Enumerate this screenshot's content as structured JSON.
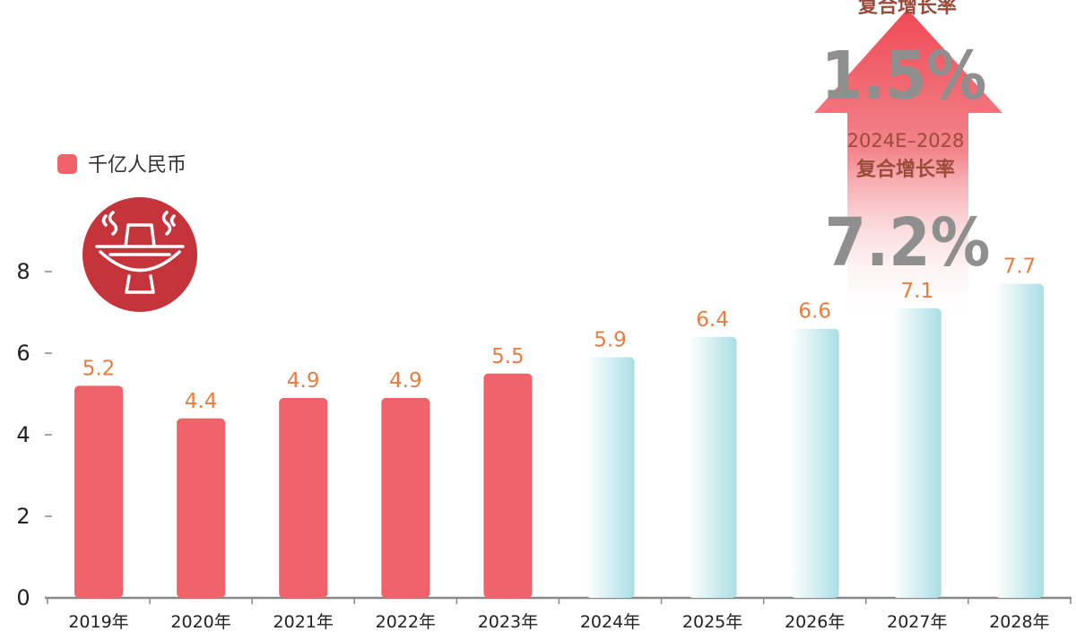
{
  "colors": {
    "actual": "#f0636a",
    "forecast": "#a9dfe5",
    "value_label": "#e87d40",
    "axis": "#888888",
    "cagr_text": "#9b4b3a",
    "cagr_value": "#8f8f8f",
    "arrow": "#ef4a55",
    "icon": "#c4343a"
  },
  "legend": {
    "label": "千亿人民币"
  },
  "icon": {
    "name": "hotpot-icon"
  },
  "cagr_top": {
    "label": "复合增长率",
    "value": "1.5%"
  },
  "cagr_bottom": {
    "period": "2024E–2028",
    "label": "复合增长率",
    "value": "7.2%"
  },
  "chart_data": {
    "type": "bar",
    "categories": [
      "2019年",
      "2020年",
      "2021年",
      "2022年",
      "2023年",
      "2024年",
      "2025年",
      "2026年",
      "2027年",
      "2028年"
    ],
    "values": [
      5.2,
      4.4,
      4.9,
      4.9,
      5.5,
      5.9,
      6.4,
      6.6,
      7.1,
      7.7
    ],
    "value_labels": [
      "5.2",
      "4.4",
      "4.9",
      "4.9",
      "5.5",
      "5.9",
      "6.4",
      "6.6",
      "7.1",
      "7.7"
    ],
    "forecast_from_index": 5,
    "ylim": [
      0,
      8
    ],
    "yticks": [
      "0",
      "2",
      "4",
      "6",
      "8"
    ],
    "legend_position": "top-left",
    "grid": false
  }
}
